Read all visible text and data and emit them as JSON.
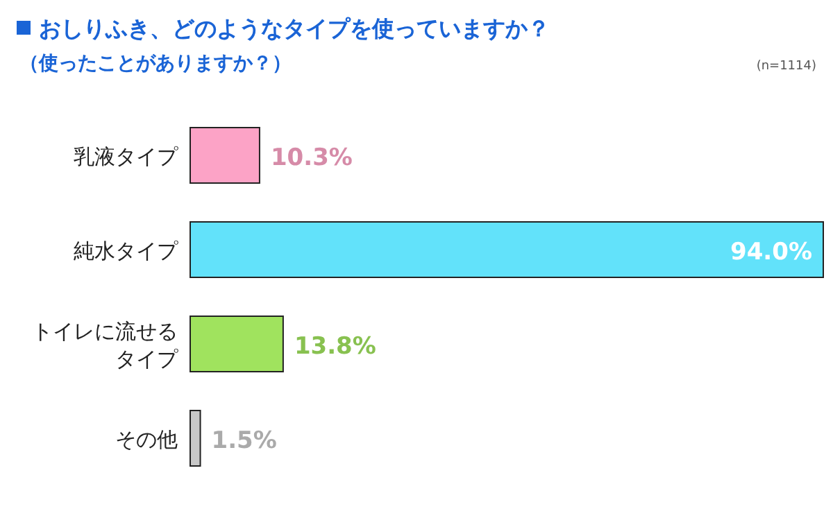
{
  "chart_data": {
    "type": "bar",
    "orientation": "horizontal",
    "title": "おしりふき、どのようなタイプを使っていますか？",
    "subtitle": "（使ったことがありますか？）",
    "annotations": [
      "(n=1114)"
    ],
    "categories": [
      "乳液タイプ",
      "純水タイプ",
      "トイレに流せるタイプ",
      "その他"
    ],
    "values": [
      10.3,
      94.0,
      13.8,
      1.5
    ],
    "colors": [
      "#fca3c6",
      "#62e2fa",
      "#a0e35e",
      "#c8c8c8"
    ],
    "value_labels": [
      "10.3%",
      "94.0%",
      "13.8%",
      "1.5%"
    ]
  }
}
